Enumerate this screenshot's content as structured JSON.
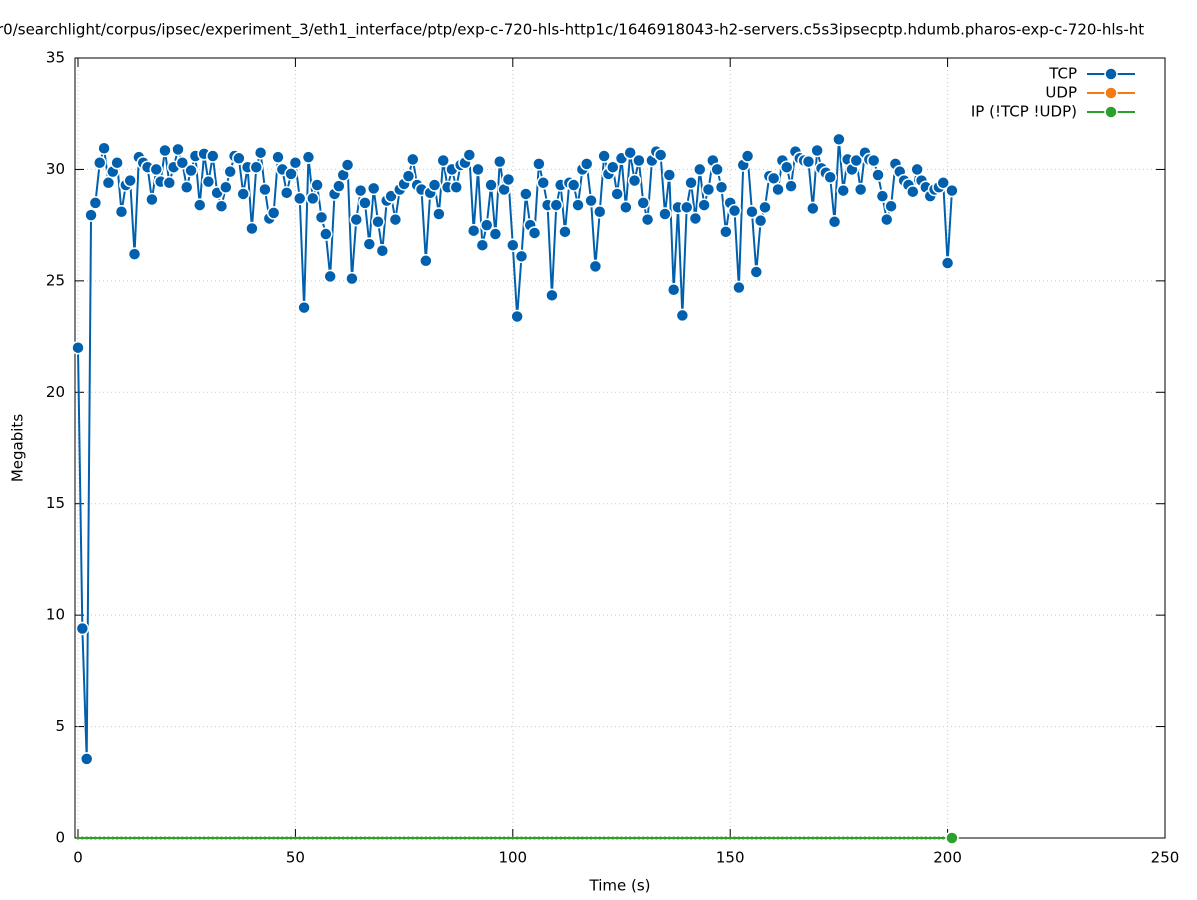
{
  "chart_data": {
    "type": "line",
    "title": "r0/searchlight/corpus/ipsec/experiment_3/eth1_interface/ptp/exp-c-720-hls-http1c/1646918043-h2-servers.c5s3ipsecptp.hdumb.pharos-exp-c-720-hls-ht",
    "xlabel": "Time (s)",
    "ylabel": "Megabits",
    "xlim": [
      0,
      250
    ],
    "xticks": [
      0,
      50,
      100,
      150,
      200,
      250
    ],
    "ylim": [
      0,
      35
    ],
    "yticks": [
      0,
      5,
      10,
      15,
      20,
      25,
      30,
      35
    ],
    "grid": true,
    "legend": "top-right",
    "x": [
      0,
      1,
      2,
      3,
      4,
      5,
      6,
      7,
      8,
      9,
      10,
      11,
      12,
      13,
      14,
      15,
      16,
      17,
      18,
      19,
      20,
      21,
      22,
      23,
      24,
      25,
      26,
      27,
      28,
      29,
      30,
      31,
      32,
      33,
      34,
      35,
      36,
      37,
      38,
      39,
      40,
      41,
      42,
      43,
      44,
      45,
      46,
      47,
      48,
      49,
      50,
      51,
      52,
      53,
      54,
      55,
      56,
      57,
      58,
      59,
      60,
      61,
      62,
      63,
      64,
      65,
      66,
      67,
      68,
      69,
      70,
      71,
      72,
      73,
      74,
      75,
      76,
      77,
      78,
      79,
      80,
      81,
      82,
      83,
      84,
      85,
      86,
      87,
      88,
      89,
      90,
      91,
      92,
      93,
      94,
      95,
      96,
      97,
      98,
      99,
      100,
      101,
      102,
      103,
      104,
      105,
      106,
      107,
      108,
      109,
      110,
      111,
      112,
      113,
      114,
      115,
      116,
      117,
      118,
      119,
      120,
      121,
      122,
      123,
      124,
      125,
      126,
      127,
      128,
      129,
      130,
      131,
      132,
      133,
      134,
      135,
      136,
      137,
      138,
      139,
      140,
      141,
      142,
      143,
      144,
      145,
      146,
      147,
      148,
      149,
      150,
      151,
      152,
      153,
      154,
      155,
      156,
      157,
      158,
      159,
      160,
      161,
      162,
      163,
      164,
      165,
      166,
      167,
      168,
      169,
      170,
      171,
      172,
      173,
      174,
      175,
      176,
      177,
      178,
      179,
      180,
      181,
      182,
      183,
      184,
      185,
      186,
      187,
      188,
      189,
      190,
      191,
      192,
      193,
      194,
      195,
      196,
      197,
      198,
      199,
      200,
      201
    ],
    "series": [
      {
        "name": "TCP",
        "color": "#0060ad",
        "values": [
          22.0,
          9.4,
          3.55,
          27.95,
          28.5,
          30.3,
          30.95,
          29.4,
          29.9,
          30.3,
          28.1,
          29.3,
          29.5,
          26.2,
          30.55,
          30.3,
          30.1,
          28.65,
          30.0,
          29.45,
          30.85,
          29.4,
          30.1,
          30.9,
          30.3,
          29.2,
          29.95,
          30.6,
          28.4,
          30.7,
          29.45,
          30.6,
          28.95,
          28.35,
          29.2,
          29.9,
          30.6,
          30.5,
          28.9,
          30.1,
          27.35,
          30.1,
          30.75,
          29.1,
          27.8,
          28.05,
          30.55,
          30.0,
          28.95,
          29.8,
          30.3,
          28.7,
          23.8,
          30.55,
          28.7,
          29.3,
          27.85,
          27.1,
          25.2,
          28.9,
          29.25,
          29.75,
          30.2,
          25.1,
          27.75,
          29.05,
          28.5,
          26.65,
          29.15,
          27.65,
          26.35,
          28.6,
          28.8,
          27.75,
          29.1,
          29.35,
          29.7,
          30.45,
          29.3,
          29.1,
          25.9,
          28.95,
          29.3,
          28.0,
          30.4,
          29.2,
          30.0,
          29.2,
          30.2,
          30.3,
          30.65,
          27.25,
          30.0,
          26.6,
          27.5,
          29.3,
          27.1,
          30.35,
          29.1,
          29.55,
          26.6,
          23.4,
          26.1,
          28.9,
          27.5,
          27.15,
          30.25,
          29.4,
          28.4,
          24.35,
          28.4,
          29.3,
          27.2,
          29.4,
          29.3,
          28.4,
          30.0,
          30.25,
          28.6,
          25.65,
          28.1,
          30.6,
          29.8,
          30.1,
          28.9,
          30.5,
          28.3,
          30.75,
          29.5,
          30.4,
          28.5,
          27.75,
          30.4,
          30.8,
          30.65,
          28.0,
          29.75,
          24.6,
          28.3,
          23.45,
          28.3,
          29.4,
          27.8,
          30.0,
          28.4,
          29.1,
          30.4,
          30.0,
          29.2,
          27.2,
          28.5,
          28.15,
          24.7,
          30.2,
          30.6,
          28.1,
          25.4,
          27.7,
          28.3,
          29.7,
          29.6,
          29.1,
          30.4,
          30.1,
          29.25,
          30.8,
          30.5,
          30.4,
          30.35,
          28.25,
          30.85,
          30.05,
          29.85,
          29.65,
          27.65,
          31.35,
          29.05,
          30.45,
          30.0,
          30.4,
          29.1,
          30.75,
          30.45,
          30.4,
          29.75,
          28.8,
          27.75,
          28.35,
          30.25,
          29.9,
          29.5,
          29.3,
          29.0,
          30.0,
          29.5,
          29.2,
          28.8,
          29.1,
          29.2,
          29.4,
          25.8,
          29.05
        ]
      },
      {
        "name": "UDP",
        "color": "#f47a12",
        "values": [
          0,
          0,
          0,
          0,
          0,
          0,
          0,
          0,
          0,
          0,
          0,
          0,
          0,
          0,
          0,
          0,
          0,
          0,
          0,
          0,
          0,
          0,
          0,
          0,
          0,
          0,
          0,
          0,
          0,
          0,
          0,
          0,
          0,
          0,
          0,
          0,
          0,
          0,
          0,
          0,
          0,
          0,
          0,
          0,
          0,
          0,
          0,
          0,
          0,
          0,
          0,
          0,
          0,
          0,
          0,
          0,
          0,
          0,
          0,
          0,
          0,
          0,
          0,
          0,
          0,
          0,
          0,
          0,
          0,
          0,
          0,
          0,
          0,
          0,
          0,
          0,
          0,
          0,
          0,
          0,
          0,
          0,
          0,
          0,
          0,
          0,
          0,
          0,
          0,
          0,
          0,
          0,
          0,
          0,
          0,
          0,
          0,
          0,
          0,
          0,
          0,
          0,
          0,
          0,
          0,
          0,
          0,
          0,
          0,
          0,
          0,
          0,
          0,
          0,
          0,
          0,
          0,
          0,
          0,
          0,
          0,
          0,
          0,
          0,
          0,
          0,
          0,
          0,
          0,
          0,
          0,
          0,
          0,
          0,
          0,
          0,
          0,
          0,
          0,
          0,
          0,
          0,
          0,
          0,
          0,
          0,
          0,
          0,
          0,
          0,
          0,
          0,
          0,
          0,
          0,
          0,
          0,
          0,
          0,
          0,
          0,
          0,
          0,
          0,
          0,
          0,
          0,
          0,
          0,
          0,
          0,
          0,
          0,
          0,
          0,
          0,
          0,
          0,
          0,
          0,
          0,
          0,
          0,
          0,
          0,
          0,
          0,
          0,
          0,
          0,
          0,
          0,
          0,
          0,
          0,
          0,
          0,
          0,
          0,
          0,
          0,
          0
        ]
      },
      {
        "name": "IP (!TCP  !UDP)",
        "color": "#2ca02c",
        "values": [
          0,
          0,
          0,
          0,
          0,
          0,
          0,
          0,
          0,
          0,
          0,
          0,
          0,
          0,
          0,
          0,
          0,
          0,
          0,
          0,
          0,
          0,
          0,
          0,
          0,
          0,
          0,
          0,
          0,
          0,
          0,
          0,
          0,
          0,
          0,
          0,
          0,
          0,
          0,
          0,
          0,
          0,
          0,
          0,
          0,
          0,
          0,
          0,
          0,
          0,
          0,
          0,
          0,
          0,
          0,
          0,
          0,
          0,
          0,
          0,
          0,
          0,
          0,
          0,
          0,
          0,
          0,
          0,
          0,
          0,
          0,
          0,
          0,
          0,
          0,
          0,
          0,
          0,
          0,
          0,
          0,
          0,
          0,
          0,
          0,
          0,
          0,
          0,
          0,
          0,
          0,
          0,
          0,
          0,
          0,
          0,
          0,
          0,
          0,
          0,
          0,
          0,
          0,
          0,
          0,
          0,
          0,
          0,
          0,
          0,
          0,
          0,
          0,
          0,
          0,
          0,
          0,
          0,
          0,
          0,
          0,
          0,
          0,
          0,
          0,
          0,
          0,
          0,
          0,
          0,
          0,
          0,
          0,
          0,
          0,
          0,
          0,
          0,
          0,
          0,
          0,
          0,
          0,
          0,
          0,
          0,
          0,
          0,
          0,
          0,
          0,
          0,
          0,
          0,
          0,
          0,
          0,
          0,
          0,
          0,
          0,
          0,
          0,
          0,
          0,
          0,
          0,
          0,
          0,
          0,
          0,
          0,
          0,
          0,
          0,
          0,
          0,
          0,
          0,
          0,
          0,
          0,
          0,
          0,
          0,
          0,
          0,
          0,
          0,
          0,
          0,
          0,
          0,
          0,
          0,
          0,
          0,
          0,
          0,
          0,
          0,
          0
        ]
      }
    ]
  }
}
